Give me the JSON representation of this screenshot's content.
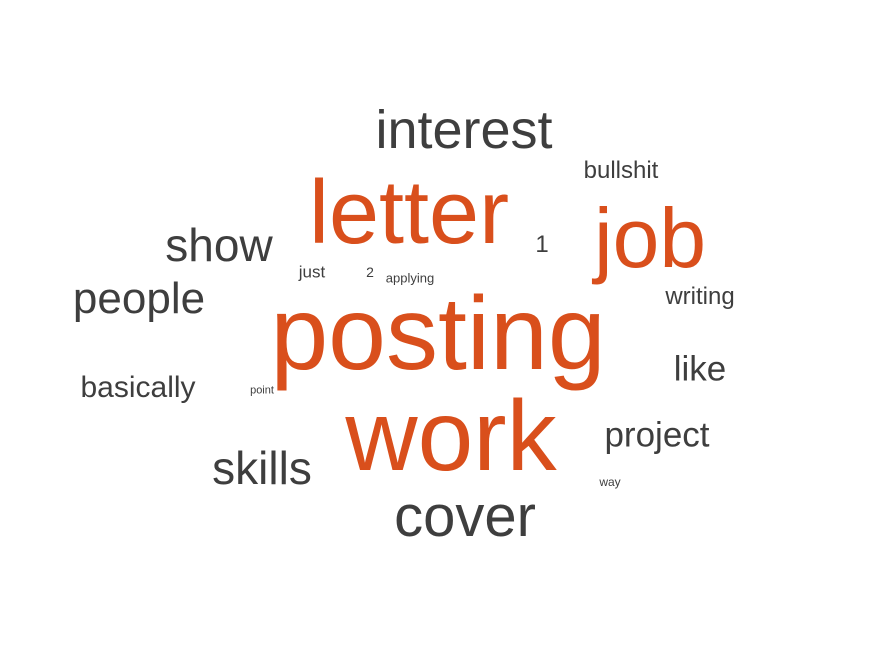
{
  "word_cloud": {
    "colors": {
      "highlight": "#d94f1c",
      "normal": "#3e3e3e"
    },
    "words": [
      {
        "text": "posting"
      },
      {
        "text": "work"
      },
      {
        "text": "letter"
      },
      {
        "text": "job"
      },
      {
        "text": "cover"
      },
      {
        "text": "interest"
      },
      {
        "text": "show"
      },
      {
        "text": "people"
      },
      {
        "text": "skills"
      },
      {
        "text": "project"
      },
      {
        "text": "basically"
      },
      {
        "text": "like"
      },
      {
        "text": "bullshit"
      },
      {
        "text": "writing"
      },
      {
        "text": "1"
      },
      {
        "text": "just"
      },
      {
        "text": "2"
      },
      {
        "text": "applying"
      },
      {
        "text": "point"
      },
      {
        "text": "way"
      }
    ]
  }
}
